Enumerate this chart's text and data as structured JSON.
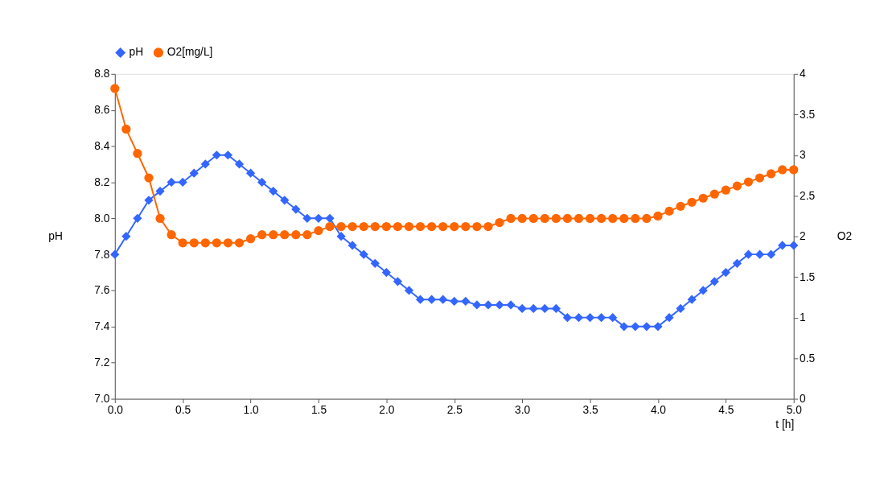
{
  "chart_data": {
    "type": "line",
    "xlabel": "t [h]",
    "ylabel": "pH",
    "y2label": "O2",
    "x": [
      0,
      0.0833,
      0.1667,
      0.25,
      0.3333,
      0.4167,
      0.5,
      0.5833,
      0.6667,
      0.75,
      0.8333,
      0.9167,
      1,
      1.0833,
      1.1667,
      1.25,
      1.3333,
      1.4167,
      1.5,
      1.5833,
      1.6667,
      1.75,
      1.8333,
      1.9167,
      2,
      2.0833,
      2.1667,
      2.25,
      2.3333,
      2.4167,
      2.5,
      2.5833,
      2.6667,
      2.75,
      2.8333,
      2.9167,
      3,
      3.0833,
      3.1667,
      3.25,
      3.3333,
      3.4167,
      3.5,
      3.5833,
      3.6667,
      3.75,
      3.8333,
      3.9167,
      4,
      4.0833,
      4.1667,
      4.25,
      4.3333,
      4.4167,
      4.5,
      4.5833,
      4.6667,
      4.75,
      4.8333,
      4.9167,
      5
    ],
    "series": [
      {
        "name": "pH",
        "color": "#3366ff",
        "marker": "diamond",
        "values": [
          7.8,
          7.9,
          8.0,
          8.1,
          8.15,
          8.2,
          8.2,
          8.25,
          8.3,
          8.35,
          8.35,
          8.3,
          8.25,
          8.2,
          8.15,
          8.1,
          8.05,
          8.0,
          8.0,
          8.0,
          7.9,
          7.85,
          7.8,
          7.75,
          7.7,
          7.65,
          7.6,
          7.55,
          7.55,
          7.55,
          7.54,
          7.54,
          7.52,
          7.52,
          7.52,
          7.52,
          7.5,
          7.5,
          7.5,
          7.5,
          7.45,
          7.45,
          7.45,
          7.45,
          7.45,
          7.4,
          7.4,
          7.4,
          7.4,
          7.45,
          7.5,
          7.55,
          7.6,
          7.65,
          7.7,
          7.75,
          7.8,
          7.8,
          7.8,
          7.85,
          7.85
        ]
      },
      {
        "name": "O2[mg/L]",
        "color": "#ff6600",
        "marker": "circle",
        "axis": "y2",
        "values": [
          3.82,
          3.32,
          3.02,
          2.72,
          2.22,
          2.02,
          1.92,
          1.92,
          1.92,
          1.92,
          1.92,
          1.92,
          1.97,
          2.02,
          2.02,
          2.02,
          2.02,
          2.02,
          2.07,
          2.12,
          2.12,
          2.12,
          2.12,
          2.12,
          2.12,
          2.12,
          2.12,
          2.12,
          2.12,
          2.12,
          2.12,
          2.12,
          2.12,
          2.12,
          2.17,
          2.22,
          2.22,
          2.22,
          2.22,
          2.22,
          2.22,
          2.22,
          2.22,
          2.22,
          2.22,
          2.22,
          2.22,
          2.22,
          2.25,
          2.31,
          2.37,
          2.42,
          2.47,
          2.52,
          2.57,
          2.62,
          2.67,
          2.72,
          2.77,
          2.82,
          2.82
        ]
      }
    ],
    "xlim": [
      0,
      5
    ],
    "xticks": [
      {
        "value": 0,
        "label": "0.0"
      },
      0.5,
      {
        "value": 1,
        "label": "1.0"
      },
      1.5,
      {
        "value": 2,
        "label": "2.0"
      },
      2.5,
      {
        "value": 3,
        "label": "3.0"
      },
      3.5,
      {
        "value": 4,
        "label": "4.0"
      },
      4.5,
      {
        "value": 5,
        "label": "5.0"
      }
    ],
    "ylim": [
      7,
      8.8
    ],
    "yticks": [
      {
        "value": 7,
        "label": "7.0"
      },
      7.2,
      7.4,
      7.6,
      7.8,
      {
        "value": 8,
        "label": "8.0"
      },
      8.2,
      8.4,
      8.6,
      8.8
    ],
    "y2lim": [
      0,
      4
    ],
    "y2ticks": [
      0,
      0.5,
      1,
      1.5,
      2,
      2.5,
      3,
      3.5,
      4
    ],
    "grid": false,
    "legend": "top",
    "line_style": "solid"
  }
}
